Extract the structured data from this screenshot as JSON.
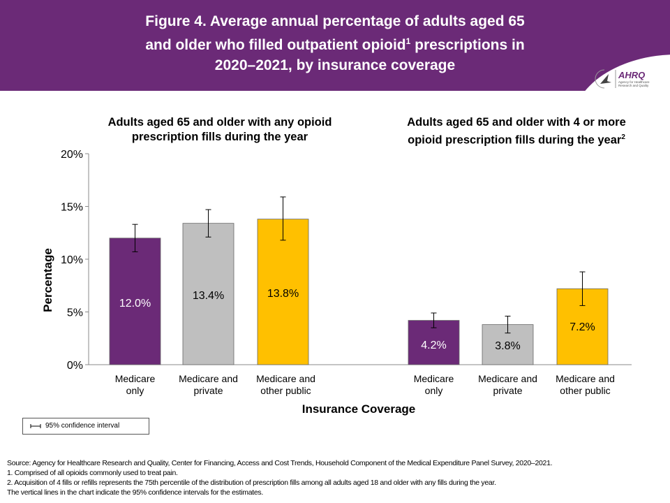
{
  "header": {
    "title_line1": "Figure 4. Average annual percentage of adults aged 65",
    "title_line2a": "and older who filled outpatient opioid",
    "title_sup": "1",
    "title_line2b": " prescriptions in",
    "title_line3": "2020–2021, by insurance coverage",
    "logo_text": "AHRQ Agency for Healthcare Research and Quality"
  },
  "colors": {
    "header": "#6b2a77",
    "medicare_only": "#6b2a77",
    "medicare_private": "#bfbfbf",
    "medicare_other_public": "#ffc000"
  },
  "chart_data": {
    "type": "bar",
    "ylabel": "Percentage",
    "xlabel": "Insurance Coverage",
    "ylim": [
      0,
      20
    ],
    "yticks": [
      "0%",
      "5%",
      "10%",
      "15%",
      "20%"
    ],
    "grid": false,
    "panels": [
      {
        "title": "Adults aged 65 and older with any opioid prescription fills during the year",
        "title_sup": "",
        "categories": [
          "Medicare only",
          "Medicare and private",
          "Medicare and other public"
        ],
        "values": [
          12.0,
          13.4,
          13.8
        ],
        "labels": [
          "12.0%",
          "13.4%",
          "13.8%"
        ],
        "ci_low": [
          10.7,
          12.1,
          11.8
        ],
        "ci_high": [
          13.3,
          14.7,
          15.9
        ]
      },
      {
        "title": "Adults aged 65 and older with 4 or more opioid prescription fills during the year",
        "title_sup": "2",
        "categories": [
          "Medicare only",
          "Medicare and private",
          "Medicare and other public"
        ],
        "values": [
          4.2,
          3.8,
          7.2
        ],
        "labels": [
          "4.2%",
          "3.8%",
          "7.2%"
        ],
        "ci_low": [
          3.5,
          3.0,
          5.6
        ],
        "ci_high": [
          4.9,
          4.6,
          8.8
        ]
      }
    ],
    "legend": {
      "label": "95% confidence interval",
      "placement": "bottom-left"
    }
  },
  "footnotes": {
    "source": "Source: Agency for Healthcare Research and Quality, Center for Financing, Access and Cost Trends, Household Component of the Medical Expenditure Panel Survey, 2020–2021.",
    "note1": "1.    Comprised of all opioids commonly used to treat pain.",
    "note2": "2.    Acquisition of 4 fills or refills represents the 75th percentile of the distribution of prescription fills among all adults aged 18 and older with any fills during the year.",
    "note3": "The vertical lines in the chart indicate the 95% confidence intervals for the estimates."
  }
}
